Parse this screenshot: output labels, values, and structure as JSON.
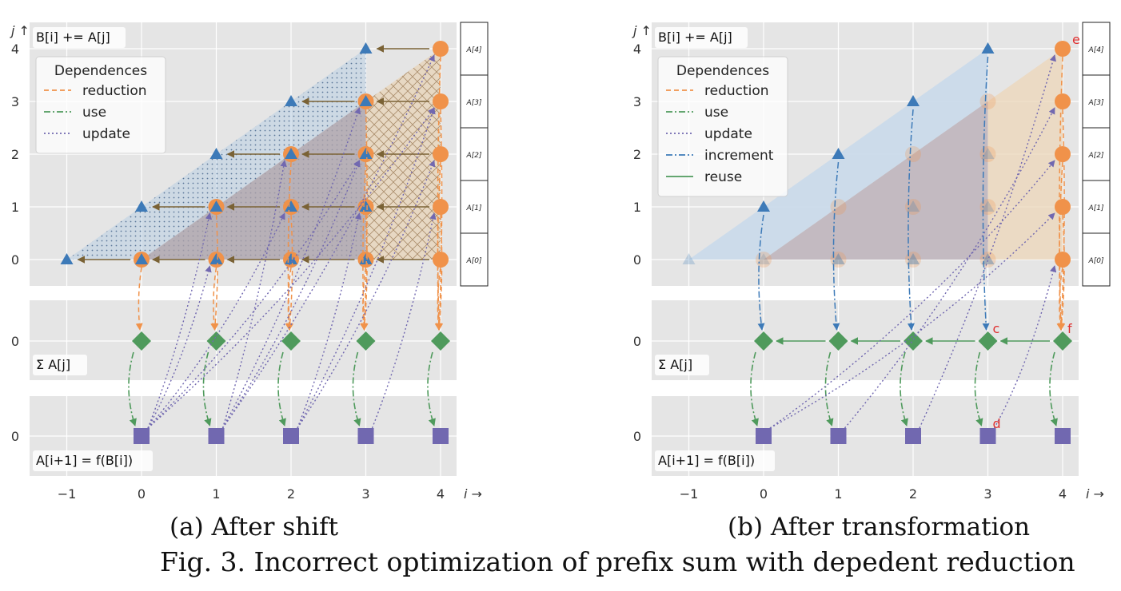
{
  "caption": "Fig. 3.  Incorrect optimization of prefix sum with depedent reduction",
  "colors": {
    "reduction": "#f0924a",
    "use": "#4f9a5c",
    "update": "#7168b0",
    "increment": "#3d7ab8",
    "reuse": "#4f9a5c",
    "arrow_brown": "#7a6235",
    "annotation_red": "#e03030",
    "panel_bg": "#e5e5e5"
  },
  "panels": [
    {
      "id": "a",
      "subcaption": "(a) After shift",
      "top_label": "B[i] += A[j]",
      "middle_label": "Σ A[j]",
      "bottom_label": "A[i+1] = f(B[i])",
      "legend_title": "Dependences",
      "legend": [
        {
          "label": "reduction",
          "style": "dashed",
          "color_key": "reduction"
        },
        {
          "label": "use",
          "style": "dashdot",
          "color_key": "use"
        },
        {
          "label": "update",
          "style": "dotted",
          "color_key": "update"
        }
      ],
      "x_ticks": [
        "−1",
        "0",
        "1",
        "2",
        "3",
        "4"
      ],
      "x_axis_label": "i →",
      "y_axis_label": "j ↑",
      "y_ticks_top": [
        "0",
        "1",
        "2",
        "3",
        "4"
      ],
      "y_tick_mid": "0",
      "y_tick_bot": "0",
      "array_labels": [
        "A[4]",
        "A[3]",
        "A[2]",
        "A[1]",
        "A[0]"
      ],
      "annotations": []
    },
    {
      "id": "b",
      "subcaption": "(b) After transformation",
      "top_label": "B[i] += A[j]",
      "middle_label": "Σ A[j]",
      "bottom_label": "A[i+1] = f(B[i])",
      "legend_title": "Dependences",
      "legend": [
        {
          "label": "reduction",
          "style": "dashed",
          "color_key": "reduction"
        },
        {
          "label": "use",
          "style": "dashdot",
          "color_key": "use"
        },
        {
          "label": "update",
          "style": "dotted",
          "color_key": "update"
        },
        {
          "label": "increment",
          "style": "dashdot",
          "color_key": "increment"
        },
        {
          "label": "reuse",
          "style": "solid",
          "color_key": "reuse"
        }
      ],
      "x_ticks": [
        "−1",
        "0",
        "1",
        "2",
        "3",
        "4"
      ],
      "x_axis_label": "i →",
      "y_axis_label": "j ↑",
      "y_ticks_top": [
        "0",
        "1",
        "2",
        "3",
        "4"
      ],
      "y_tick_mid": "0",
      "y_tick_bot": "0",
      "array_labels": [
        "A[4]",
        "A[3]",
        "A[2]",
        "A[1]",
        "A[0]"
      ],
      "annotations": [
        "e",
        "c",
        "f",
        "d"
      ]
    }
  ]
}
